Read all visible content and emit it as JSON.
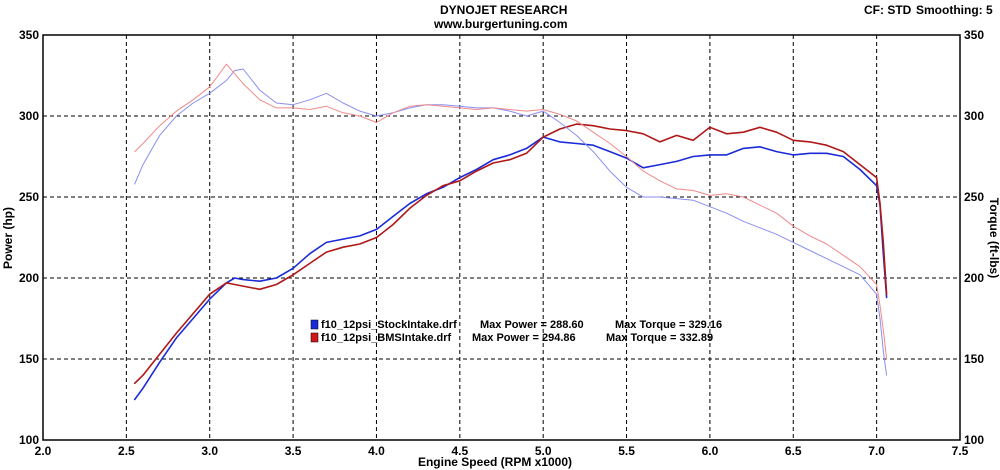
{
  "header": {
    "title": "DYNOJET RESEARCH",
    "subtitle": "www.burgertuning.com",
    "correction": "CF: STD",
    "smoothing": "Smoothing: 5"
  },
  "chart_data": {
    "type": "line",
    "xlabel": "Engine Speed (RPM x1000)",
    "ylabel": "Power (hp)",
    "y2label": "Torque (ft-lbs)",
    "xlim": [
      2.0,
      7.5
    ],
    "ylim": [
      100,
      350
    ],
    "y2lim": [
      100,
      350
    ],
    "xticks": [
      "2.0",
      "2.5",
      "3.0",
      "3.5",
      "4.0",
      "4.5",
      "5.0",
      "5.5",
      "6.0",
      "6.5",
      "7.0",
      "7.5"
    ],
    "yticks": [
      "100",
      "150",
      "200",
      "250",
      "300",
      "350"
    ],
    "grid": true,
    "legend_placement": "center",
    "legend": [
      {
        "file": "f10_12psi_StockIntake.drf",
        "max_power_label": "Max Power = 288.60",
        "max_torque_label": "Max Torque = 329.16",
        "color": "#1a2bd8"
      },
      {
        "file": "f10_12psi_BMSIntake.drf",
        "max_power_label": "Max Power = 294.86",
        "max_torque_label": "Max Torque = 332.89",
        "color": "#d01818"
      }
    ],
    "series": [
      {
        "run": "f10_12psi_StockIntake.drf",
        "measure": "power",
        "color": "#1a2bd8",
        "stroke": "#1a2bd8",
        "width": 1.6,
        "x": [
          2.55,
          2.6,
          2.7,
          2.8,
          2.9,
          3.0,
          3.1,
          3.15,
          3.2,
          3.3,
          3.4,
          3.5,
          3.6,
          3.7,
          3.8,
          3.9,
          4.0,
          4.1,
          4.2,
          4.3,
          4.4,
          4.5,
          4.6,
          4.7,
          4.8,
          4.9,
          5.0,
          5.1,
          5.2,
          5.3,
          5.4,
          5.5,
          5.6,
          5.7,
          5.8,
          5.9,
          6.0,
          6.1,
          6.2,
          6.3,
          6.4,
          6.5,
          6.6,
          6.7,
          6.8,
          6.9,
          7.0,
          7.02,
          7.04,
          7.06
        ],
        "y": [
          125,
          132,
          148,
          163,
          175,
          187,
          197,
          200,
          199,
          198,
          200,
          206,
          215,
          222,
          224,
          226,
          230,
          238,
          246,
          252,
          256,
          262,
          267,
          273,
          276,
          280,
          287,
          284,
          283,
          282,
          278,
          274,
          268,
          270,
          272,
          275,
          276,
          276,
          280,
          281,
          278,
          276,
          277,
          277,
          275,
          267,
          257,
          245,
          215,
          188
        ]
      },
      {
        "run": "f10_12psi_BMSIntake.drf",
        "measure": "power",
        "color": "#b01818",
        "stroke": "#b01818",
        "width": 1.6,
        "x": [
          2.55,
          2.6,
          2.7,
          2.8,
          2.9,
          3.0,
          3.1,
          3.2,
          3.3,
          3.4,
          3.5,
          3.6,
          3.7,
          3.8,
          3.9,
          4.0,
          4.1,
          4.2,
          4.3,
          4.4,
          4.5,
          4.6,
          4.7,
          4.8,
          4.9,
          5.0,
          5.1,
          5.2,
          5.3,
          5.4,
          5.5,
          5.6,
          5.7,
          5.8,
          5.9,
          6.0,
          6.1,
          6.2,
          6.3,
          6.4,
          6.5,
          6.6,
          6.7,
          6.8,
          6.9,
          7.0,
          7.02,
          7.04,
          7.06
        ],
        "y": [
          135,
          140,
          153,
          166,
          178,
          190,
          197,
          195,
          193,
          196,
          202,
          209,
          216,
          219,
          221,
          225,
          233,
          243,
          251,
          257,
          260,
          266,
          271,
          273,
          277,
          287,
          292,
          295,
          294,
          292,
          291,
          289,
          284,
          288,
          285,
          293,
          289,
          290,
          293,
          290,
          285,
          284,
          282,
          278,
          270,
          262,
          246,
          222,
          190
        ]
      },
      {
        "run": "f10_12psi_StockIntake.drf",
        "measure": "torque",
        "color": "#8a8ef0",
        "stroke": "#8a8ef0",
        "width": 1.0,
        "x": [
          2.55,
          2.6,
          2.7,
          2.8,
          2.9,
          3.0,
          3.1,
          3.15,
          3.2,
          3.3,
          3.4,
          3.5,
          3.6,
          3.7,
          3.8,
          3.9,
          4.0,
          4.1,
          4.2,
          4.3,
          4.4,
          4.5,
          4.6,
          4.7,
          4.8,
          4.9,
          5.0,
          5.1,
          5.2,
          5.3,
          5.4,
          5.5,
          5.6,
          5.7,
          5.8,
          5.9,
          6.0,
          6.1,
          6.2,
          6.3,
          6.4,
          6.5,
          6.6,
          6.7,
          6.8,
          6.9,
          7.0,
          7.02,
          7.04,
          7.06
        ],
        "y": [
          258,
          270,
          288,
          300,
          308,
          314,
          322,
          328,
          329,
          316,
          308,
          307,
          310,
          314,
          308,
          303,
          300,
          302,
          305,
          307,
          307,
          306,
          305,
          305,
          303,
          300,
          303,
          296,
          288,
          278,
          266,
          256,
          250,
          250,
          249,
          248,
          244,
          240,
          235,
          231,
          227,
          222,
          217,
          212,
          207,
          202,
          190,
          175,
          155,
          140
        ]
      },
      {
        "run": "f10_12psi_BMSIntake.drf",
        "measure": "torque",
        "color": "#f08a8a",
        "stroke": "#f08a8a",
        "width": 1.0,
        "x": [
          2.55,
          2.6,
          2.7,
          2.8,
          2.9,
          3.0,
          3.05,
          3.1,
          3.2,
          3.3,
          3.4,
          3.5,
          3.6,
          3.7,
          3.8,
          3.9,
          4.0,
          4.1,
          4.2,
          4.3,
          4.4,
          4.5,
          4.6,
          4.7,
          4.8,
          4.9,
          5.0,
          5.1,
          5.2,
          5.3,
          5.4,
          5.5,
          5.6,
          5.7,
          5.8,
          5.9,
          6.0,
          6.1,
          6.2,
          6.3,
          6.4,
          6.5,
          6.6,
          6.7,
          6.8,
          6.9,
          7.0,
          7.02,
          7.04,
          7.06
        ],
        "y": [
          278,
          283,
          294,
          303,
          310,
          318,
          325,
          332,
          320,
          310,
          305,
          305,
          304,
          306,
          302,
          300,
          296,
          302,
          306,
          307,
          306,
          305,
          304,
          305,
          304,
          303,
          304,
          301,
          297,
          290,
          283,
          275,
          266,
          260,
          255,
          254,
          251,
          252,
          250,
          245,
          240,
          232,
          226,
          221,
          214,
          207,
          196,
          183,
          168,
          150
        ]
      }
    ]
  }
}
